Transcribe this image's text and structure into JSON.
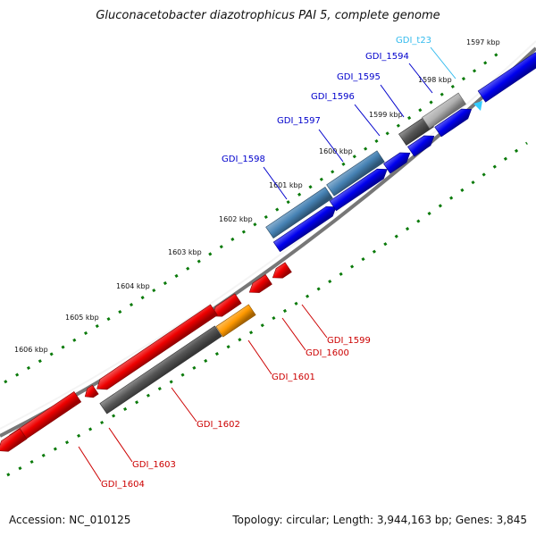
{
  "title": "Gluconacetobacter diazotrophicus PAI 5, complete genome",
  "footer": {
    "accession": "Accession: NC_010125",
    "summary": "Topology: circular; Length: 3,944,163 bp; Genes: 3,845"
  },
  "colors": {
    "forward_cds": "#0000ee",
    "reverse_cds": "#ee0000",
    "steelblue_feature": "#4682b4",
    "pseudo_feature": "#555555",
    "orange_feature": "#ff9900",
    "trna": "#33ccff",
    "backbone": "#777777",
    "tick_green": "#0a7a0a",
    "forward_label": "#0000cc",
    "reverse_label": "#cc0000",
    "trna_label": "#33bbee"
  },
  "kbp_labels": [
    "1597 kbp",
    "1598 kbp",
    "1599 kbp",
    "1600 kbp",
    "1601 kbp",
    "1602 kbp",
    "1603 kbp",
    "1604 kbp",
    "1605 kbp",
    "1606 kbp"
  ],
  "forward_genes": [
    "GDI_t23",
    "GDI_1594",
    "GDI_1595",
    "GDI_1596",
    "GDI_1597",
    "GDI_1598"
  ],
  "reverse_genes": [
    "GDI_1599",
    "GDI_1600",
    "GDI_1601",
    "GDI_1602",
    "GDI_1603",
    "GDI_1604"
  ]
}
